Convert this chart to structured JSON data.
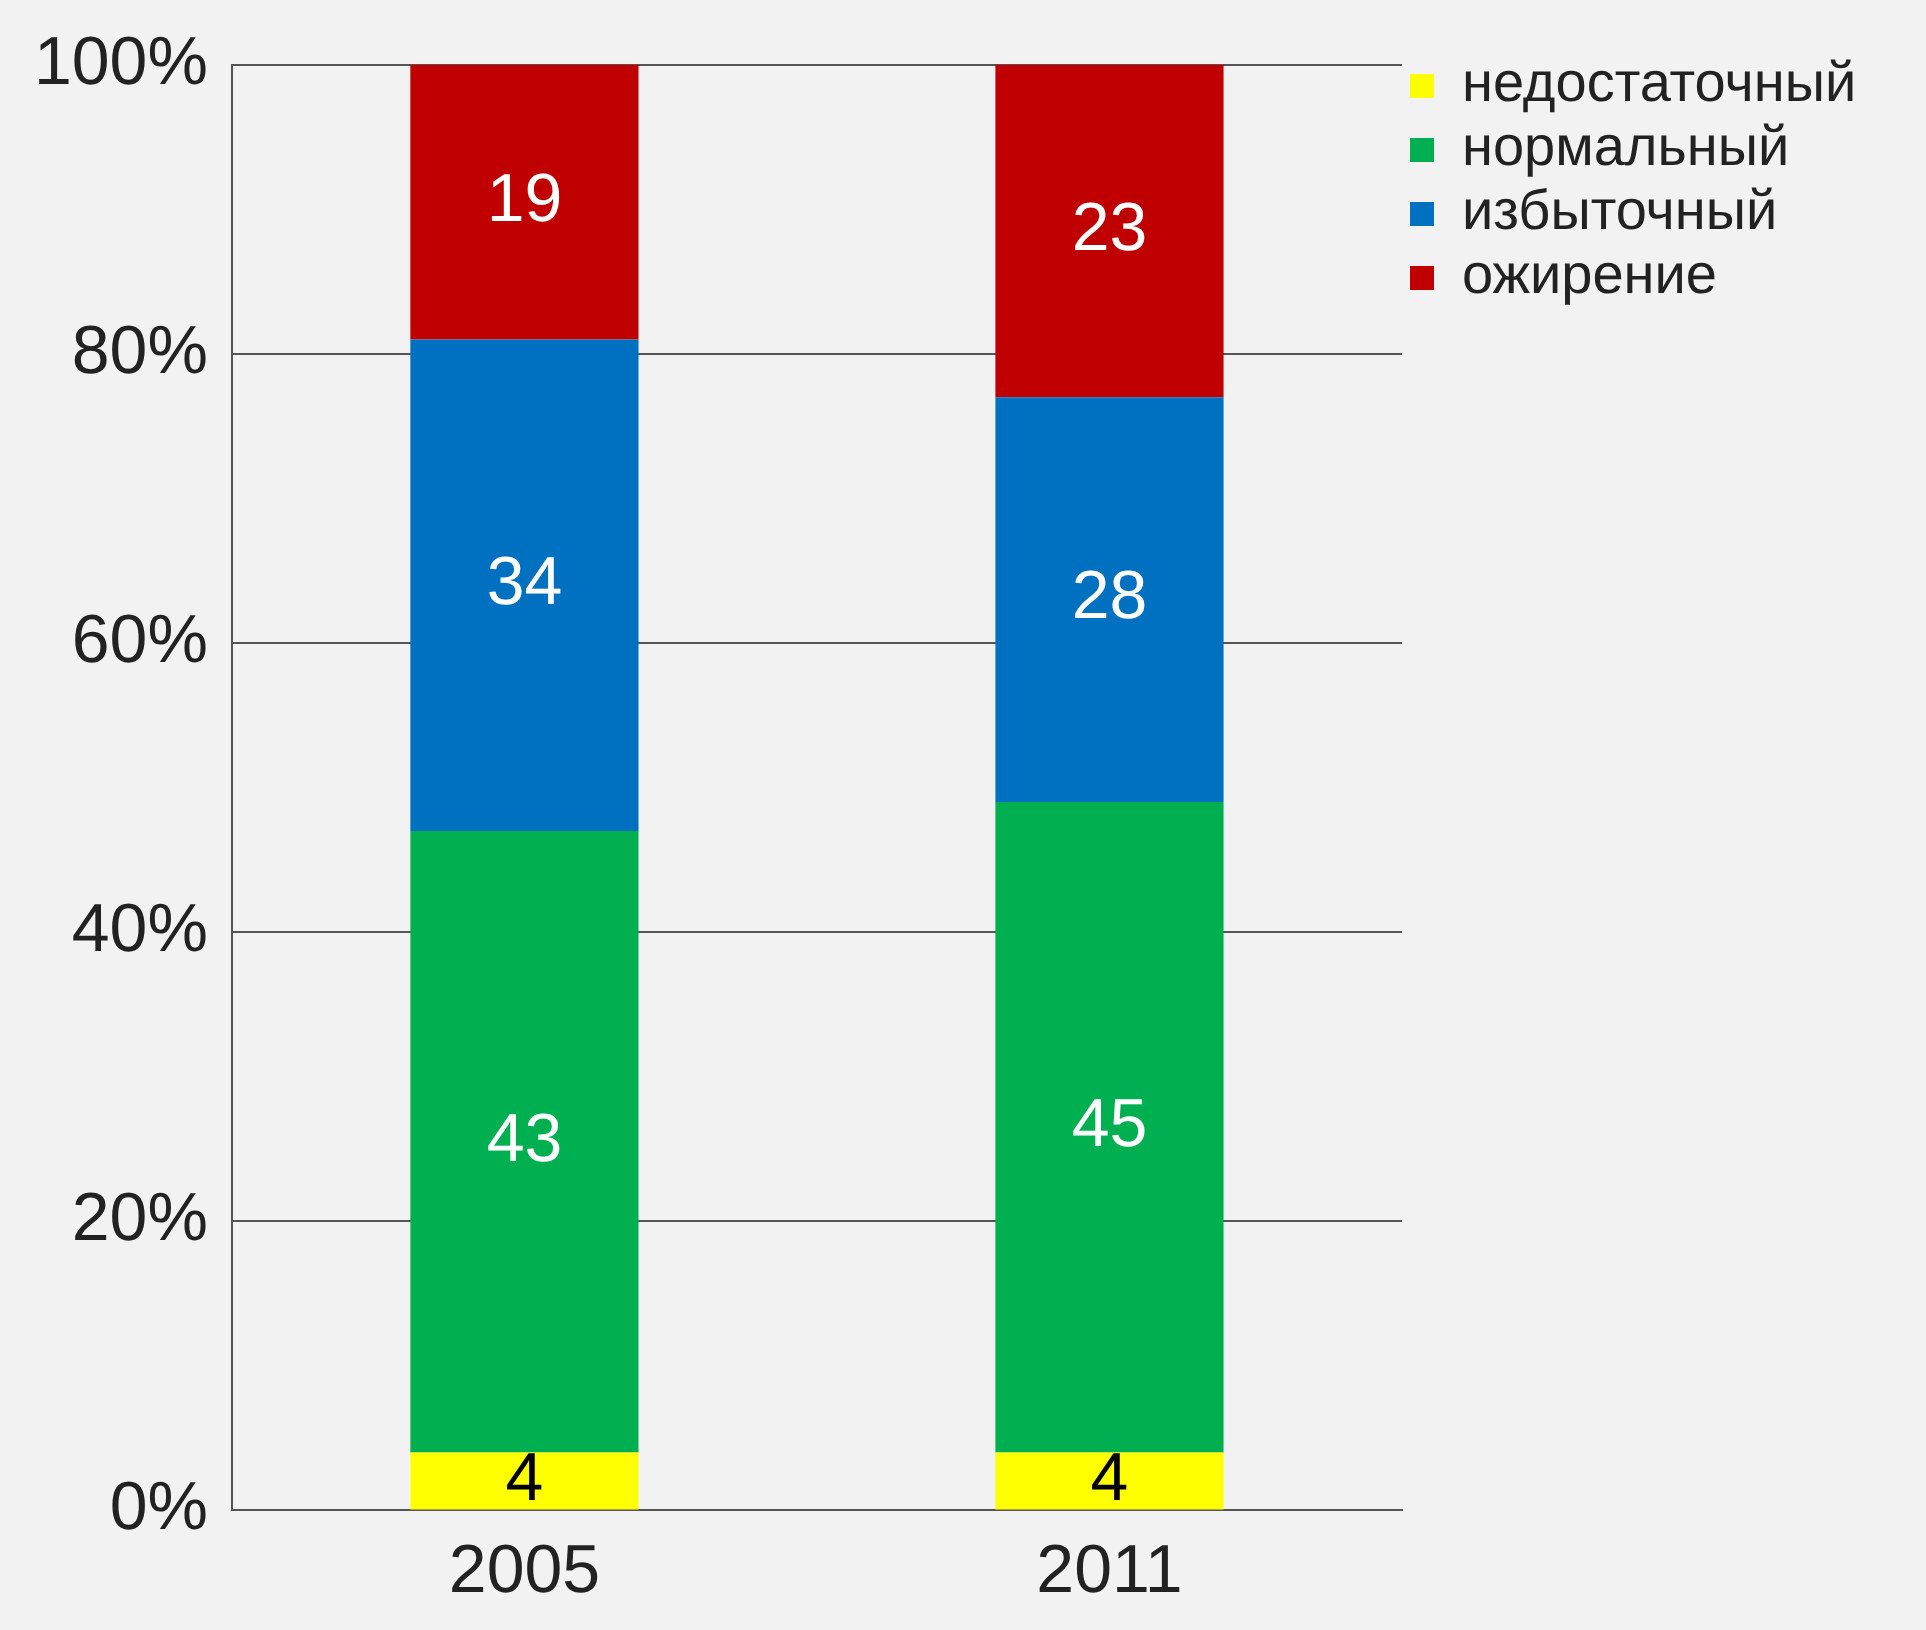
{
  "chart_data": {
    "type": "bar",
    "stacked": true,
    "categories": [
      "2005",
      "2011"
    ],
    "series": [
      {
        "name": "недостаточный",
        "color": "#ffff00",
        "values": [
          4,
          4
        ]
      },
      {
        "name": "нормальный",
        "color": "#00b050",
        "values": [
          43,
          45
        ]
      },
      {
        "name": "избыточный",
        "color": "#0070c0",
        "values": [
          34,
          28
        ]
      },
      {
        "name": "ожирение",
        "color": "#c00000",
        "values": [
          19,
          23
        ]
      }
    ],
    "ylim": [
      0,
      100
    ],
    "yticks": [
      {
        "value": 0,
        "label": "0%"
      },
      {
        "value": 20,
        "label": "20%"
      },
      {
        "value": 40,
        "label": "40%"
      },
      {
        "value": 60,
        "label": "60%"
      },
      {
        "value": 80,
        "label": "80%"
      },
      {
        "value": 100,
        "label": "100%"
      }
    ],
    "grid": "y",
    "legend": "top right",
    "data_labels": true
  }
}
